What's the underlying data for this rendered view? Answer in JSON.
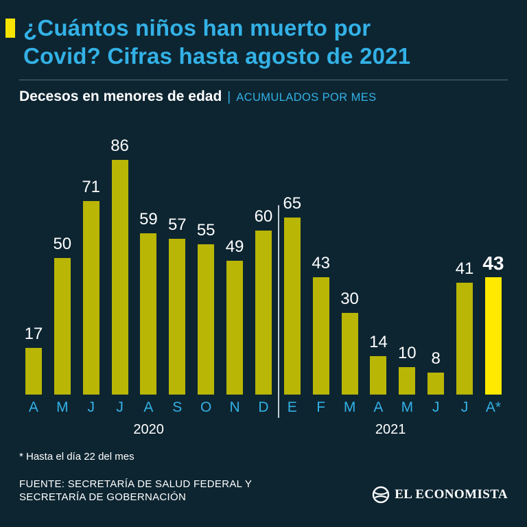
{
  "header": {
    "title_lines": [
      "¿Cuántos niños han muerto por",
      "Covid? Cifras hasta agosto de 2021"
    ]
  },
  "subtitle": {
    "bold": "Decesos en menores de edad",
    "separator": "|",
    "light": "ACUMULADOS POR MES"
  },
  "chart_data": {
    "type": "bar",
    "categories": [
      "A",
      "M",
      "J",
      "J",
      "A",
      "S",
      "O",
      "N",
      "D",
      "E",
      "F",
      "M",
      "A",
      "M",
      "J",
      "J",
      "A*"
    ],
    "values": [
      17,
      50,
      71,
      86,
      59,
      57,
      55,
      49,
      60,
      65,
      43,
      30,
      14,
      10,
      8,
      41,
      43
    ],
    "highlight_index": 16,
    "groups": [
      {
        "label": "2020",
        "start": 0,
        "end": 8
      },
      {
        "label": "2021",
        "start": 9,
        "end": 16
      }
    ],
    "title": "Decesos en menores de edad | Acumulados por mes",
    "xlabel": "",
    "ylabel": "",
    "ylim": [
      0,
      90
    ],
    "grid": false,
    "legend": "none",
    "bar_color": "#b9b606",
    "highlight_color": "#ffe900"
  },
  "footnote": "* Hasta el día 22 del mes",
  "source": {
    "line1": "FUENTE: SECRETARÍA DE SALUD FEDERAL Y",
    "line2": "SECRETARÍA DE GOBERNACIÓN"
  },
  "logo": {
    "text": "EL ECONOMISTA"
  },
  "colors": {
    "background": "#0d2531",
    "title_cyan": "#33b1e6",
    "marker_yellow": "#f8e400",
    "bar_olive": "#b9b606",
    "bar_highlight": "#ffe900",
    "text_white": "#ffffff"
  }
}
